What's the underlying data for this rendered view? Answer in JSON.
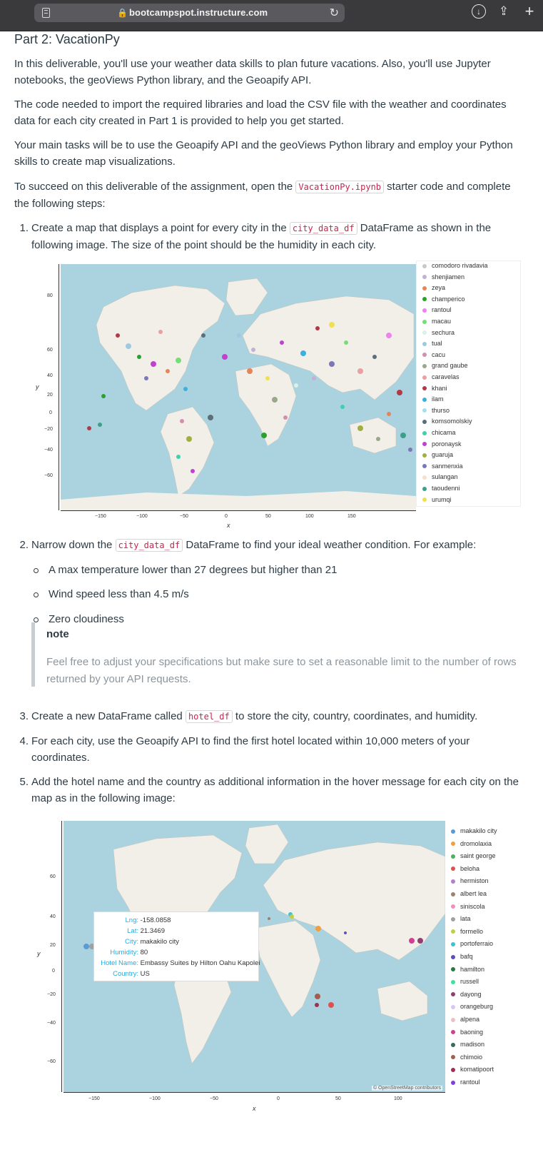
{
  "browser": {
    "url": "bootcampspot.instructure.com"
  },
  "page": {
    "title": "Part 2: VacationPy",
    "intro1": "In this deliverable, you'll use your weather data skills to plan future vacations. Also, you'll use Jupyter notebooks, the geoViews Python library, and the Geoapify API.",
    "intro2": "The code needed to import the required libraries and load the CSV file with the weather and coordinates data for each city created in Part 1 is provided to help you get started.",
    "intro3": "Your main tasks will be to use the Geoapify API and the geoViews Python library and employ your Python skills to create map visualizations.",
    "intro4_a": "To succeed on this deliverable of the assignment, open the ",
    "intro4_code": "VacationPy.ipynb",
    "intro4_b": " starter code and complete the following steps:",
    "step1_num": "1.",
    "step1_a": "Create a map that displays a point for every city in the ",
    "step1_code": "city_data_df",
    "step1_b": " DataFrame as shown in the following image. The size of the point should be the humidity in each city.",
    "step2_num": "2.",
    "step2_a": "Narrow down the ",
    "step2_code": "city_data_df",
    "step2_b": " DataFrame to find your ideal weather condition. For example:",
    "bullets": [
      "A max temperature lower than 27 degrees but higher than 21",
      "Wind speed less than 4.5 m/s",
      "Zero cloudiness"
    ],
    "note_title": "note",
    "note_text": "Feel free to adjust your specifications but make sure to set a reasonable limit to the number of rows returned by your API requests.",
    "step3_num": "3.",
    "step3_a": "Create a new DataFrame called ",
    "step3_code": "hotel_df",
    "step3_b": " to store the city, country, coordinates, and humidity.",
    "step4_num": "4.",
    "step4": "For each city, use the Geoapify API to find the first hotel located within 10,000 meters of your coordinates.",
    "step5_num": "5.",
    "step5": "Add the hotel name and the country as additional information in the hover message for each city on the map as in the following image:"
  },
  "map1": {
    "legend": [
      {
        "name": "comodoro rivadavia",
        "color": "#c9c9c9"
      },
      {
        "name": "shenjiamen",
        "color": "#c5b0d5"
      },
      {
        "name": "zeya",
        "color": "#e5855a"
      },
      {
        "name": "champerico",
        "color": "#2ca02c"
      },
      {
        "name": "rantoul",
        "color": "#ee82ee"
      },
      {
        "name": "macau",
        "color": "#77dd77"
      },
      {
        "name": "sechura",
        "color": "#d9f2e6"
      },
      {
        "name": "tual",
        "color": "#9ecae1"
      },
      {
        "name": "cacu",
        "color": "#d48fb0"
      },
      {
        "name": "grand gaube",
        "color": "#9aa88a"
      },
      {
        "name": "caravelas",
        "color": "#e8a0a0"
      },
      {
        "name": "khani",
        "color": "#b03a48"
      },
      {
        "name": "ilam",
        "color": "#3ab0e0"
      },
      {
        "name": "thurso",
        "color": "#a6dff0"
      },
      {
        "name": "komsomolskiy",
        "color": "#5a6f7a"
      },
      {
        "name": "chicama",
        "color": "#40d0b0"
      },
      {
        "name": "poronaysk",
        "color": "#c040d0"
      },
      {
        "name": "guaruja",
        "color": "#a0b040"
      },
      {
        "name": "sanmenxia",
        "color": "#7a78b8"
      },
      {
        "name": "sulangan",
        "color": "#f5e0d0"
      },
      {
        "name": "taoudenni",
        "color": "#3aa088"
      },
      {
        "name": "urumqi",
        "color": "#f0e050"
      }
    ],
    "yticks": [
      "80",
      "60",
      "40",
      "20",
      "0",
      "−20",
      "−40",
      "−60"
    ],
    "xticks": [
      "−150",
      "−100",
      "−50",
      "0",
      "50",
      "100",
      "150"
    ],
    "ylabel": "y",
    "xlabel": "x"
  },
  "map2": {
    "legend": [
      {
        "name": "makakilo city",
        "color": "#5b9bd5"
      },
      {
        "name": "dromolaxia",
        "color": "#f0a040"
      },
      {
        "name": "saint george",
        "color": "#50b060"
      },
      {
        "name": "beloha",
        "color": "#e05050"
      },
      {
        "name": "hermiston",
        "color": "#b080d0"
      },
      {
        "name": "albert lea",
        "color": "#a08070"
      },
      {
        "name": "siniscola",
        "color": "#f090c0"
      },
      {
        "name": "lata",
        "color": "#a0a0a0"
      },
      {
        "name": "formello",
        "color": "#c0d040"
      },
      {
        "name": "portoferraio",
        "color": "#40c0d8"
      },
      {
        "name": "bafq",
        "color": "#6050b0"
      },
      {
        "name": "hamilton",
        "color": "#2a7a40"
      },
      {
        "name": "russell",
        "color": "#40e0a0"
      },
      {
        "name": "dayong",
        "color": "#904070"
      },
      {
        "name": "orangeburg",
        "color": "#d8c8f0"
      },
      {
        "name": "alpena",
        "color": "#f0c0c0"
      },
      {
        "name": "baoning",
        "color": "#d04090"
      },
      {
        "name": "madison",
        "color": "#3a6a60"
      },
      {
        "name": "chimoio",
        "color": "#a06050"
      },
      {
        "name": "komatipoort",
        "color": "#a03050"
      },
      {
        "name": "rantoul",
        "color": "#8040e0"
      }
    ],
    "yticks": [
      "60",
      "40",
      "20",
      "0",
      "−20",
      "−40",
      "−60"
    ],
    "xticks": [
      "−150",
      "−100",
      "−50",
      "0",
      "50",
      "100"
    ],
    "ylabel": "y",
    "xlabel": "x",
    "credits": "© OpenStreetMap contributors",
    "hover": [
      {
        "k": "Lng:",
        "v": "-158.0858"
      },
      {
        "k": "Lat:",
        "v": "21.3469"
      },
      {
        "k": "City:",
        "v": "makakilo city"
      },
      {
        "k": "Humidity:",
        "v": "80"
      },
      {
        "k": "Hotel Name:",
        "v": "Embassy Suites by Hilton Oahu Kapolei"
      },
      {
        "k": "Country:",
        "v": "US"
      }
    ]
  }
}
